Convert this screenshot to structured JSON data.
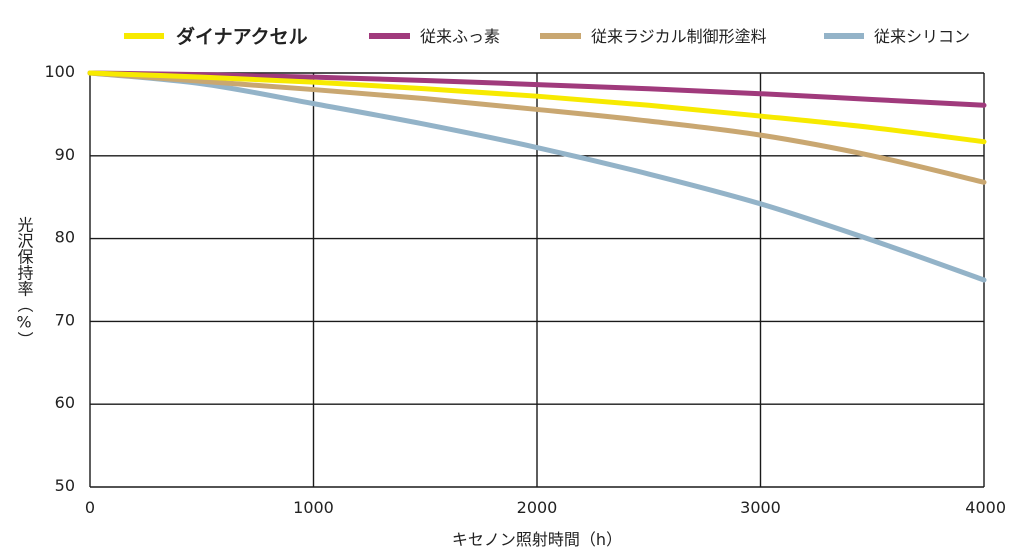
{
  "chart_data": {
    "type": "line",
    "title": "",
    "xlabel": "キセノン照射時間（h）",
    "ylabel": "光沢保持率（%）",
    "xlim": [
      0,
      4000
    ],
    "ylim": [
      50,
      100
    ],
    "x_ticks": [
      "0",
      "1000",
      "2000",
      "3000",
      "4000"
    ],
    "y_ticks": [
      "50",
      "60",
      "70",
      "80",
      "90",
      "100"
    ],
    "grid": true,
    "legend_position": "top",
    "series": [
      {
        "name": "ダイナアクセル",
        "color": "#f7ea00",
        "highlight_color": "#f2d600",
        "x": [
          0,
          500,
          1000,
          1500,
          2000,
          2500,
          3000,
          3500,
          4000
        ],
        "y": [
          100,
          99.5,
          98.9,
          98.1,
          97.2,
          96.1,
          94.8,
          93.4,
          91.7
        ]
      },
      {
        "name": "従来ふっ素",
        "color": "#a03a7c",
        "x": [
          0,
          500,
          1000,
          1500,
          2000,
          2500,
          3000,
          3500,
          4000
        ],
        "y": [
          100,
          99.8,
          99.5,
          99.1,
          98.6,
          98.1,
          97.5,
          96.8,
          96.1
        ]
      },
      {
        "name": "従来ラジカル制御形塗料",
        "color": "#c9a771",
        "x": [
          0,
          500,
          1000,
          1500,
          2000,
          2500,
          3000,
          3500,
          4000
        ],
        "y": [
          100,
          99.0,
          98.0,
          96.9,
          95.6,
          94.2,
          92.5,
          90.0,
          86.8
        ]
      },
      {
        "name": "従来シリコン",
        "color": "#93b3c8",
        "x": [
          0,
          500,
          1000,
          1500,
          2000,
          2500,
          3000,
          3500,
          4000
        ],
        "y": [
          100,
          98.7,
          96.3,
          93.8,
          91.0,
          87.8,
          84.2,
          79.8,
          75.0
        ]
      }
    ]
  }
}
